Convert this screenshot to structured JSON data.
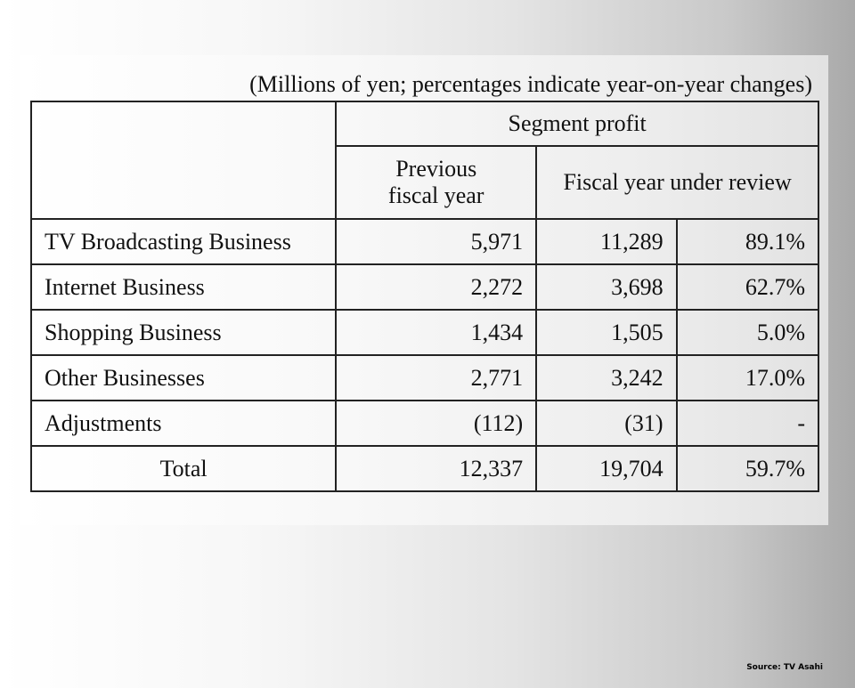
{
  "units_note": "(Millions of yen; percentages indicate year-on-year changes)",
  "header": {
    "segment_profit": "Segment profit",
    "previous_line1": "Previous",
    "previous_line2": "fiscal year",
    "current": "Fiscal year under review"
  },
  "rows": [
    {
      "name": "TV Broadcasting Business",
      "previous": "5,971",
      "current": "11,289",
      "change": "89.1%"
    },
    {
      "name": "Internet Business",
      "previous": "2,272",
      "current": "3,698",
      "change": "62.7%"
    },
    {
      "name": "Shopping Business",
      "previous": "1,434",
      "current": "1,505",
      "change": "5.0%"
    },
    {
      "name": "Other Businesses",
      "previous": "2,771",
      "current": "3,242",
      "change": "17.0%"
    },
    {
      "name": "Adjustments",
      "previous": "(112)",
      "current": "(31)",
      "change": "-"
    }
  ],
  "total": {
    "name": "Total",
    "previous": "12,337",
    "current": "19,704",
    "change": "59.7%"
  },
  "source": "Source: TV Asahi"
}
